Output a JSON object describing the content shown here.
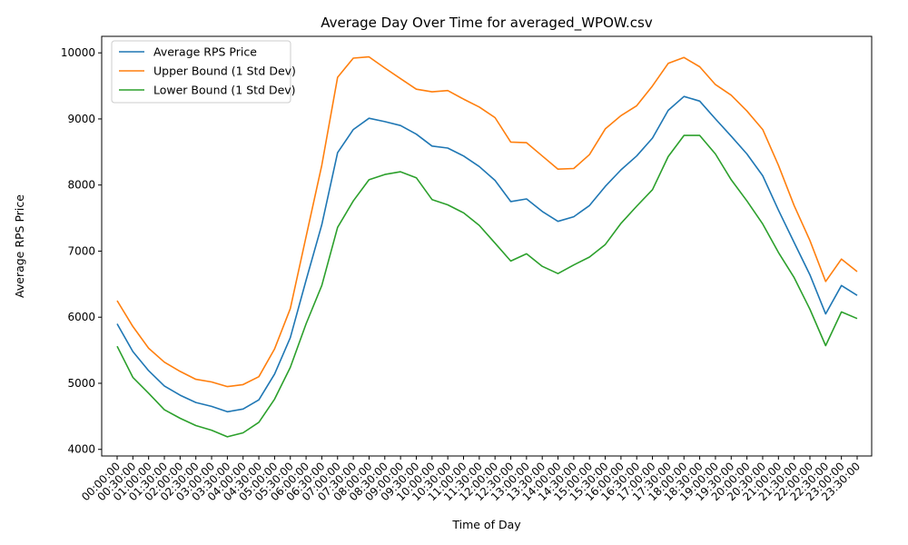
{
  "chart_data": {
    "type": "line",
    "title": "Average Day Over Time for averaged_WPOW.csv",
    "xlabel": "Time of Day",
    "ylabel": "Average RPS Price",
    "ylim": [
      3900,
      10250
    ],
    "yticks": [
      4000,
      5000,
      6000,
      7000,
      8000,
      9000,
      10000
    ],
    "grid": false,
    "legend_position": "top-left",
    "x": [
      "00:00:00",
      "00:30:00",
      "01:00:00",
      "01:30:00",
      "02:00:00",
      "02:30:00",
      "03:00:00",
      "03:30:00",
      "04:00:00",
      "04:30:00",
      "05:00:00",
      "05:30:00",
      "06:00:00",
      "06:30:00",
      "07:00:00",
      "07:30:00",
      "08:00:00",
      "08:30:00",
      "09:00:00",
      "09:30:00",
      "10:00:00",
      "10:30:00",
      "11:00:00",
      "11:30:00",
      "12:00:00",
      "12:30:00",
      "13:00:00",
      "13:30:00",
      "14:00:00",
      "14:30:00",
      "15:00:00",
      "15:30:00",
      "16:00:00",
      "16:30:00",
      "17:00:00",
      "17:30:00",
      "18:00:00",
      "18:30:00",
      "19:00:00",
      "19:30:00",
      "20:00:00",
      "20:30:00",
      "21:00:00",
      "21:30:00",
      "22:00:00",
      "22:30:00",
      "23:00:00",
      "23:30:00"
    ],
    "series": [
      {
        "name": "Average RPS Price",
        "color": "#1f77b4",
        "values": [
          5900,
          5480,
          5190,
          4960,
          4820,
          4710,
          4650,
          4570,
          4610,
          4750,
          5140,
          5690,
          6560,
          7400,
          8490,
          8840,
          9010,
          8960,
          8900,
          8770,
          8590,
          8560,
          8440,
          8280,
          8070,
          7750,
          7790,
          7600,
          7450,
          7520,
          7690,
          7980,
          8230,
          8440,
          8710,
          9130,
          9340,
          9270,
          9000,
          8740,
          8470,
          8140,
          7620,
          7130,
          6640,
          6050,
          6480,
          6330
        ]
      },
      {
        "name": "Upper Bound (1 Std Dev)",
        "color": "#ff7f0e",
        "values": [
          6250,
          5860,
          5530,
          5320,
          5180,
          5060,
          5020,
          4950,
          4980,
          5100,
          5520,
          6130,
          7220,
          8300,
          9630,
          9920,
          9940,
          9770,
          9610,
          9450,
          9410,
          9430,
          9300,
          9180,
          9020,
          8650,
          8640,
          8440,
          8240,
          8250,
          8460,
          8850,
          9050,
          9200,
          9500,
          9840,
          9930,
          9790,
          9520,
          9360,
          9120,
          8840,
          8300,
          7690,
          7160,
          6540,
          6880,
          6690
        ]
      },
      {
        "name": "Lower Bound (1 Std Dev)",
        "color": "#2ca02c",
        "values": [
          5560,
          5090,
          4850,
          4600,
          4470,
          4360,
          4290,
          4190,
          4250,
          4410,
          4760,
          5240,
          5900,
          6480,
          7360,
          7760,
          8080,
          8160,
          8200,
          8110,
          7780,
          7700,
          7580,
          7390,
          7120,
          6850,
          6960,
          6770,
          6660,
          6790,
          6910,
          7100,
          7420,
          7680,
          7930,
          8430,
          8750,
          8750,
          8470,
          8080,
          7760,
          7410,
          6980,
          6600,
          6120,
          5570,
          6080,
          5980
        ]
      }
    ]
  }
}
